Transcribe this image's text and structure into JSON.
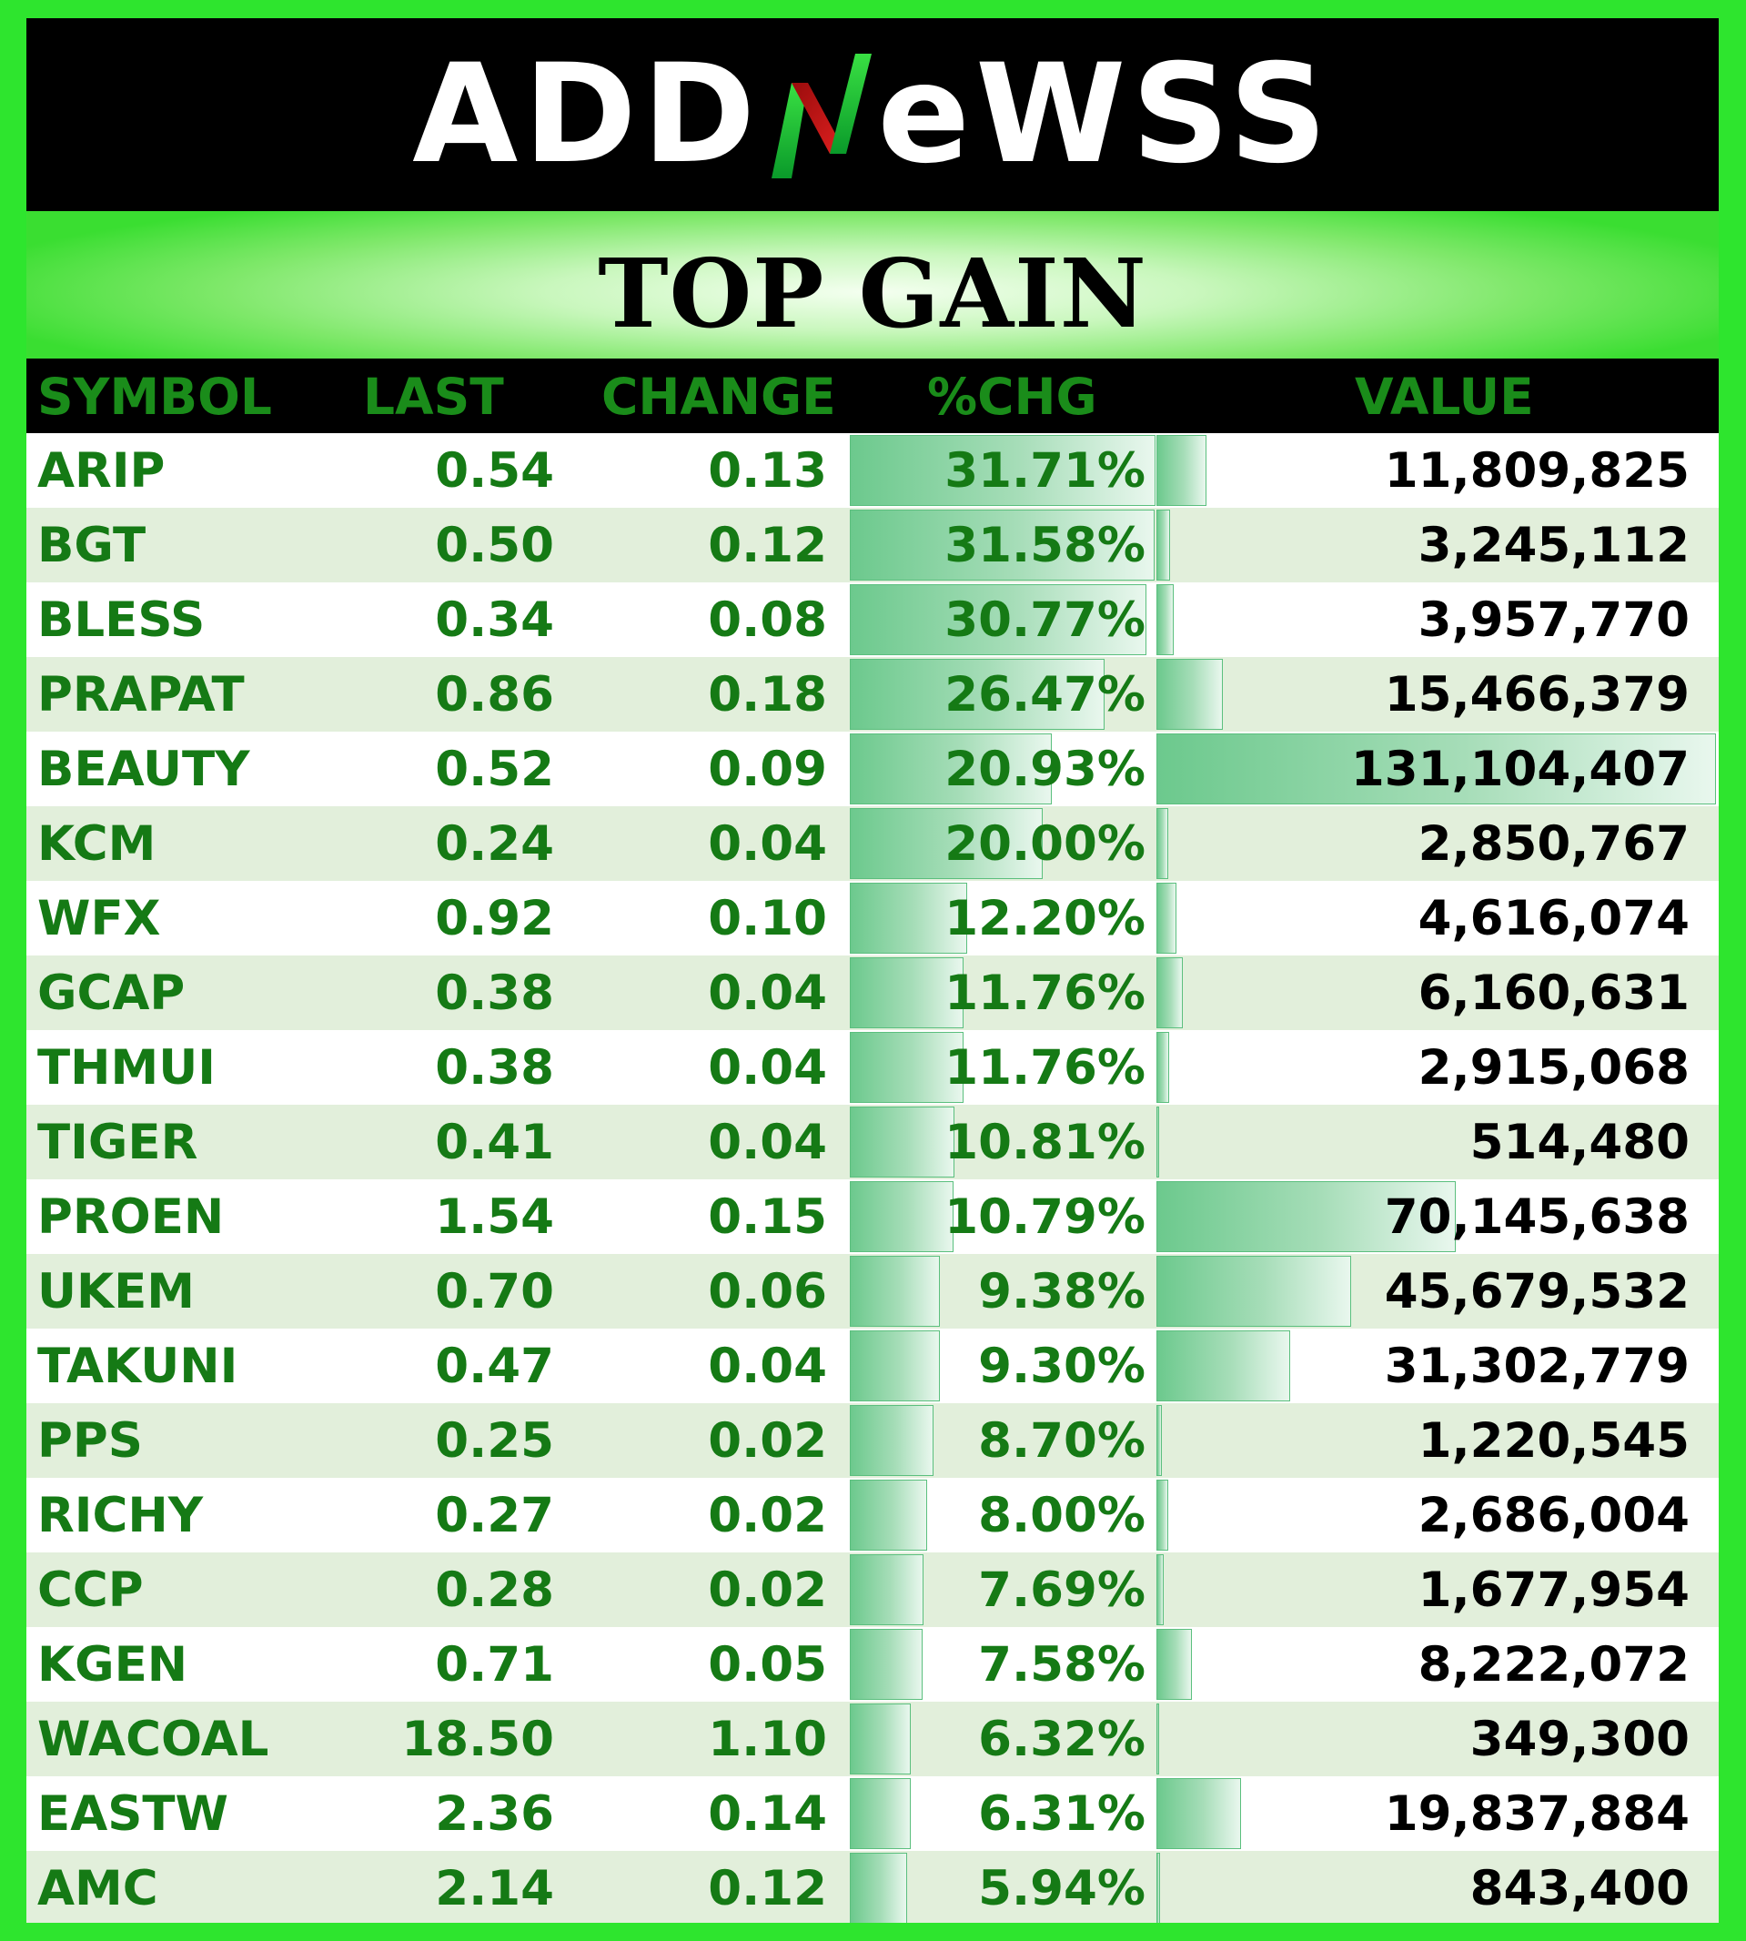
{
  "brand": {
    "logo_left": "ADD",
    "logo_right": "eWSS",
    "logo_full": "ADDNeWSS",
    "colors": {
      "background": "#2ee52e",
      "header": "#000000",
      "text_green": "#157a15",
      "row_alt": "#e2efdb"
    }
  },
  "title": "TOP GAIN",
  "columns": {
    "symbol": "SYMBOL",
    "last": "LAST",
    "change": "CHANGE",
    "pct_change": "%CHG",
    "value": "VALUE"
  },
  "rows": [
    {
      "symbol": "ARIP",
      "last": "0.54",
      "change": "0.13",
      "pct": "31.71%",
      "value": "11,809,825",
      "pct_num": 31.71,
      "value_num": 11809825
    },
    {
      "symbol": "BGT",
      "last": "0.50",
      "change": "0.12",
      "pct": "31.58%",
      "value": "3,245,112",
      "pct_num": 31.58,
      "value_num": 3245112
    },
    {
      "symbol": "BLESS",
      "last": "0.34",
      "change": "0.08",
      "pct": "30.77%",
      "value": "3,957,770",
      "pct_num": 30.77,
      "value_num": 3957770
    },
    {
      "symbol": "PRAPAT",
      "last": "0.86",
      "change": "0.18",
      "pct": "26.47%",
      "value": "15,466,379",
      "pct_num": 26.47,
      "value_num": 15466379
    },
    {
      "symbol": "BEAUTY",
      "last": "0.52",
      "change": "0.09",
      "pct": "20.93%",
      "value": "131,104,407",
      "pct_num": 20.93,
      "value_num": 131104407
    },
    {
      "symbol": "KCM",
      "last": "0.24",
      "change": "0.04",
      "pct": "20.00%",
      "value": "2,850,767",
      "pct_num": 20.0,
      "value_num": 2850767
    },
    {
      "symbol": "WFX",
      "last": "0.92",
      "change": "0.10",
      "pct": "12.20%",
      "value": "4,616,074",
      "pct_num": 12.2,
      "value_num": 4616074
    },
    {
      "symbol": "GCAP",
      "last": "0.38",
      "change": "0.04",
      "pct": "11.76%",
      "value": "6,160,631",
      "pct_num": 11.76,
      "value_num": 6160631
    },
    {
      "symbol": "THMUI",
      "last": "0.38",
      "change": "0.04",
      "pct": "11.76%",
      "value": "2,915,068",
      "pct_num": 11.76,
      "value_num": 2915068
    },
    {
      "symbol": "TIGER",
      "last": "0.41",
      "change": "0.04",
      "pct": "10.81%",
      "value": "514,480",
      "pct_num": 10.81,
      "value_num": 514480
    },
    {
      "symbol": "PROEN",
      "last": "1.54",
      "change": "0.15",
      "pct": "10.79%",
      "value": "70,145,638",
      "pct_num": 10.79,
      "value_num": 70145638
    },
    {
      "symbol": "UKEM",
      "last": "0.70",
      "change": "0.06",
      "pct": "9.38%",
      "value": "45,679,532",
      "pct_num": 9.38,
      "value_num": 45679532
    },
    {
      "symbol": "TAKUNI",
      "last": "0.47",
      "change": "0.04",
      "pct": "9.30%",
      "value": "31,302,779",
      "pct_num": 9.3,
      "value_num": 31302779
    },
    {
      "symbol": "PPS",
      "last": "0.25",
      "change": "0.02",
      "pct": "8.70%",
      "value": "1,220,545",
      "pct_num": 8.7,
      "value_num": 1220545
    },
    {
      "symbol": "RICHY",
      "last": "0.27",
      "change": "0.02",
      "pct": "8.00%",
      "value": "2,686,004",
      "pct_num": 8.0,
      "value_num": 2686004
    },
    {
      "symbol": "CCP",
      "last": "0.28",
      "change": "0.02",
      "pct": "7.69%",
      "value": "1,677,954",
      "pct_num": 7.69,
      "value_num": 1677954
    },
    {
      "symbol": "KGEN",
      "last": "0.71",
      "change": "0.05",
      "pct": "7.58%",
      "value": "8,222,072",
      "pct_num": 7.58,
      "value_num": 8222072
    },
    {
      "symbol": "WACOAL",
      "last": "18.50",
      "change": "1.10",
      "pct": "6.32%",
      "value": "349,300",
      "pct_num": 6.32,
      "value_num": 349300
    },
    {
      "symbol": "EASTW",
      "last": "2.36",
      "change": "0.14",
      "pct": "6.31%",
      "value": "19,837,884",
      "pct_num": 6.31,
      "value_num": 19837884
    },
    {
      "symbol": "AMC",
      "last": "2.14",
      "change": "0.12",
      "pct": "5.94%",
      "value": "843,400",
      "pct_num": 5.94,
      "value_num": 843400
    }
  ]
}
